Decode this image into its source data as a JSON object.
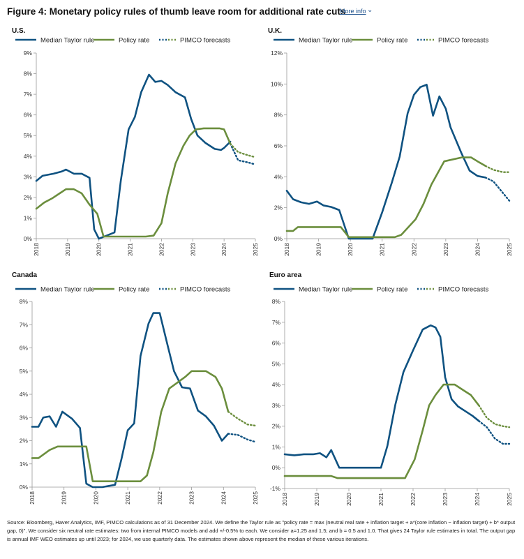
{
  "figure": {
    "title": "Figure 4: Monetary policy rules of thumb leave room for additional rate cuts",
    "more_info_label": "More info",
    "more_info_icon": "chevron-down-icon",
    "source_note": "Source: Bloomberg, Haver Analytics, IMF, PIMCO calculations as of 31 December 2024. We define the Taylor rule as \"policy rate = max (neutral real rate + inflation target + a*(core inflation − inflation target) + b* output gap, 0)\". We consider six neutral rate estimates: two from internal PIMCO models and add +/-0.5% to each. We consider a=1.25 and 1.5; and b = 0.5 and 1.0. That gives 24 Taylor rule estimates in total. The output gap is annual IMF WEO estimates up until 2023; for 2024, we use quarterly data. The estimates shown above represent the median of these various iterations."
  },
  "colors": {
    "taylor": "#0f5281",
    "policy": "#6b8e3d",
    "axis": "#999999",
    "text": "#222222"
  },
  "legend": {
    "taylor": "Median Taylor rule",
    "policy": "Policy rate",
    "forecast": "PIMCO forecasts"
  },
  "chart_data": [
    {
      "type": "line",
      "title": "U.S.",
      "x_ticks": [
        "2018",
        "2019",
        "2020",
        "2021",
        "2022",
        "2023",
        "2024",
        "2025"
      ],
      "xlim": [
        2018,
        2025
      ],
      "ylim": [
        0,
        9
      ],
      "y_ticks": [
        "0%",
        "1%",
        "2%",
        "3%",
        "4%",
        "5%",
        "6%",
        "7%",
        "8%",
        "9%"
      ],
      "y_values": [
        0,
        1,
        2,
        3,
        4,
        5,
        6,
        7,
        8,
        9
      ],
      "legend_position": "top",
      "series": [
        {
          "name": "Median Taylor rule",
          "style": "solid",
          "color": "taylor",
          "x": [
            2018.0,
            2018.2,
            2018.55,
            2018.8,
            2018.95,
            2019.2,
            2019.45,
            2019.7,
            2019.85,
            2020.0,
            2020.25,
            2020.5,
            2020.7,
            2020.95,
            2021.15,
            2021.35,
            2021.6,
            2021.8,
            2022.0,
            2022.2,
            2022.45,
            2022.75,
            2022.95,
            2023.15,
            2023.4,
            2023.7,
            2023.9,
            2024.0,
            2024.2
          ],
          "y": [
            2.8,
            3.05,
            3.15,
            3.25,
            3.35,
            3.15,
            3.15,
            2.95,
            0.45,
            0.0,
            0.15,
            0.3,
            2.8,
            5.3,
            5.9,
            7.1,
            7.95,
            7.6,
            7.65,
            7.45,
            7.1,
            6.85,
            5.8,
            5.0,
            4.65,
            4.35,
            4.3,
            4.4,
            4.7
          ]
        },
        {
          "name": "Policy rate",
          "style": "solid",
          "color": "policy",
          "x": [
            2018.0,
            2018.25,
            2018.5,
            2018.75,
            2018.95,
            2019.2,
            2019.45,
            2019.7,
            2019.95,
            2020.15,
            2020.5,
            2021.0,
            2021.2,
            2021.5,
            2021.75,
            2022.0,
            2022.2,
            2022.45,
            2022.7,
            2022.9,
            2023.1,
            2023.35,
            2023.6,
            2023.85,
            2024.0,
            2024.2
          ],
          "y": [
            1.45,
            1.75,
            1.95,
            2.2,
            2.4,
            2.4,
            2.2,
            1.65,
            1.2,
            0.1,
            0.1,
            0.1,
            0.1,
            0.1,
            0.15,
            0.75,
            2.2,
            3.65,
            4.5,
            5.0,
            5.3,
            5.35,
            5.35,
            5.35,
            5.3,
            4.6
          ]
        },
        {
          "name": "PIMCO forecasts",
          "style": "dotted",
          "color": "taylor",
          "x": [
            2024.2,
            2024.45,
            2024.75,
            2025.0
          ],
          "y": [
            4.6,
            3.8,
            3.7,
            3.6
          ]
        },
        {
          "name": "PIMCO forecasts",
          "style": "dotted",
          "color": "policy",
          "x": [
            2024.2,
            2024.45,
            2024.75,
            2025.0
          ],
          "y": [
            4.6,
            4.2,
            4.05,
            3.95
          ]
        }
      ]
    },
    {
      "type": "line",
      "title": "U.K.",
      "x_ticks": [
        "2018",
        "2019",
        "2020",
        "2021",
        "2022",
        "2023",
        "2024",
        "2025"
      ],
      "xlim": [
        2018,
        2025
      ],
      "ylim": [
        0,
        12
      ],
      "y_ticks": [
        "0%",
        "2%",
        "4%",
        "6%",
        "8%",
        "10%",
        "12%"
      ],
      "y_values": [
        0,
        2,
        4,
        6,
        8,
        10,
        12
      ],
      "legend_position": "top",
      "series": [
        {
          "name": "Median Taylor rule",
          "style": "solid",
          "color": "taylor",
          "x": [
            2018.0,
            2018.2,
            2018.45,
            2018.7,
            2018.95,
            2019.15,
            2019.4,
            2019.65,
            2019.95,
            2020.2,
            2020.7,
            2021.0,
            2021.3,
            2021.55,
            2021.8,
            2022.0,
            2022.2,
            2022.4,
            2022.6,
            2022.8,
            2023.0,
            2023.15,
            2023.5,
            2023.75,
            2024.0,
            2024.25
          ],
          "y": [
            3.1,
            2.55,
            2.35,
            2.25,
            2.4,
            2.15,
            2.05,
            1.85,
            0.0,
            0.0,
            0.0,
            1.7,
            3.6,
            5.3,
            8.1,
            9.3,
            9.8,
            9.95,
            7.95,
            9.2,
            8.4,
            7.2,
            5.5,
            4.4,
            4.05,
            3.95
          ]
        },
        {
          "name": "Policy rate",
          "style": "solid",
          "color": "policy",
          "x": [
            2018.0,
            2018.2,
            2018.35,
            2018.8,
            2019.0,
            2019.7,
            2019.95,
            2020.2,
            2020.7,
            2021.0,
            2021.4,
            2021.6,
            2021.85,
            2022.05,
            2022.3,
            2022.55,
            2022.75,
            2022.95,
            2023.5,
            2023.8,
            2024.0,
            2024.25
          ],
          "y": [
            0.5,
            0.5,
            0.75,
            0.75,
            0.75,
            0.75,
            0.1,
            0.1,
            0.1,
            0.1,
            0.1,
            0.25,
            0.8,
            1.25,
            2.25,
            3.5,
            4.25,
            5.0,
            5.25,
            5.25,
            5.0,
            4.7
          ]
        },
        {
          "name": "PIMCO forecasts",
          "style": "dotted",
          "color": "taylor",
          "x": [
            2024.25,
            2024.5,
            2024.8,
            2025.0
          ],
          "y": [
            3.95,
            3.7,
            2.95,
            2.45
          ]
        },
        {
          "name": "PIMCO forecasts",
          "style": "dotted",
          "color": "policy",
          "x": [
            2024.25,
            2024.5,
            2024.8,
            2025.0
          ],
          "y": [
            4.7,
            4.45,
            4.3,
            4.3
          ]
        }
      ]
    },
    {
      "type": "line",
      "title": "Canada",
      "x_ticks": [
        "2018",
        "2019",
        "2020",
        "2021",
        "2022",
        "2023",
        "2024",
        "2025"
      ],
      "xlim": [
        2018,
        2025
      ],
      "ylim": [
        0,
        8
      ],
      "y_ticks": [
        "0%",
        "1%",
        "2%",
        "3%",
        "4%",
        "5%",
        "6%",
        "7%",
        "8%"
      ],
      "y_values": [
        0,
        1,
        2,
        3,
        4,
        5,
        6,
        7,
        8
      ],
      "legend_position": "top",
      "series": [
        {
          "name": "Median Taylor rule",
          "style": "solid",
          "color": "taylor",
          "x": [
            2018.0,
            2018.2,
            2018.35,
            2018.55,
            2018.75,
            2018.95,
            2019.25,
            2019.5,
            2019.7,
            2019.9,
            2020.2,
            2020.6,
            2020.8,
            2021.0,
            2021.2,
            2021.4,
            2021.65,
            2021.8,
            2022.0,
            2022.25,
            2022.45,
            2022.7,
            2022.95,
            2023.2,
            2023.45,
            2023.7,
            2023.95,
            2024.15
          ],
          "y": [
            2.6,
            2.6,
            3.0,
            3.05,
            2.6,
            3.25,
            2.95,
            2.55,
            0.15,
            0.0,
            0.0,
            0.1,
            1.2,
            2.45,
            2.75,
            5.65,
            7.05,
            7.5,
            7.5,
            6.1,
            5.0,
            4.3,
            4.25,
            3.3,
            3.05,
            2.65,
            2.0,
            2.3
          ]
        },
        {
          "name": "Policy rate",
          "style": "solid",
          "color": "policy",
          "x": [
            2018.0,
            2018.2,
            2018.55,
            2018.8,
            2019.0,
            2019.7,
            2019.9,
            2020.2,
            2020.6,
            2021.0,
            2021.4,
            2021.6,
            2021.8,
            2022.05,
            2022.3,
            2022.55,
            2022.8,
            2023.0,
            2023.45,
            2023.75,
            2023.95,
            2024.15
          ],
          "y": [
            1.25,
            1.25,
            1.6,
            1.75,
            1.75,
            1.75,
            0.25,
            0.25,
            0.25,
            0.25,
            0.25,
            0.5,
            1.5,
            3.25,
            4.25,
            4.5,
            4.75,
            5.0,
            5.0,
            4.75,
            4.25,
            3.25
          ]
        },
        {
          "name": "PIMCO forecasts",
          "style": "dotted",
          "color": "taylor",
          "x": [
            2024.15,
            2024.45,
            2024.75,
            2025.0
          ],
          "y": [
            2.3,
            2.25,
            2.05,
            1.95
          ]
        },
        {
          "name": "PIMCO forecasts",
          "style": "dotted",
          "color": "policy",
          "x": [
            2024.15,
            2024.45,
            2024.75,
            2025.0
          ],
          "y": [
            3.25,
            2.95,
            2.7,
            2.65
          ]
        }
      ]
    },
    {
      "type": "line",
      "title": "Euro area",
      "x_ticks": [
        "2018",
        "2019",
        "2020",
        "2021",
        "2022",
        "2023",
        "2024",
        "2025"
      ],
      "xlim": [
        2018,
        2025
      ],
      "ylim": [
        -1,
        8
      ],
      "y_ticks": [
        "-1%",
        "0%",
        "1%",
        "2%",
        "3%",
        "4%",
        "5%",
        "6%",
        "7%",
        "8%"
      ],
      "y_values": [
        -1,
        0,
        1,
        2,
        3,
        4,
        5,
        6,
        7,
        8
      ],
      "legend_position": "top",
      "series": [
        {
          "name": "Median Taylor rule",
          "style": "solid",
          "color": "taylor",
          "x": [
            2018.0,
            2018.3,
            2018.6,
            2018.9,
            2019.1,
            2019.3,
            2019.45,
            2019.7,
            2019.9,
            2020.2,
            2020.6,
            2021.0,
            2021.2,
            2021.45,
            2021.7,
            2022.0,
            2022.3,
            2022.55,
            2022.7,
            2022.85,
            2023.0,
            2023.2,
            2023.4,
            2023.65,
            2023.85,
            2024.05
          ],
          "y": [
            0.65,
            0.6,
            0.65,
            0.65,
            0.7,
            0.5,
            0.85,
            0.0,
            0.0,
            0.0,
            0.0,
            0.0,
            1.05,
            3.05,
            4.6,
            5.65,
            6.65,
            6.85,
            6.75,
            6.3,
            4.35,
            3.3,
            2.95,
            2.7,
            2.5,
            2.25
          ]
        },
        {
          "name": "Policy rate",
          "style": "solid",
          "color": "policy",
          "x": [
            2018.0,
            2019.45,
            2019.65,
            2020.0,
            2021.0,
            2021.4,
            2021.75,
            2022.05,
            2022.3,
            2022.5,
            2022.7,
            2022.95,
            2023.3,
            2023.55,
            2023.8,
            2024.05
          ],
          "y": [
            -0.4,
            -0.4,
            -0.5,
            -0.5,
            -0.5,
            -0.5,
            -0.5,
            0.4,
            1.8,
            3.0,
            3.5,
            4.0,
            4.0,
            3.75,
            3.5,
            3.0
          ]
        },
        {
          "name": "PIMCO forecasts",
          "style": "dotted",
          "color": "taylor",
          "x": [
            2024.05,
            2024.3,
            2024.55,
            2024.8,
            2025.0
          ],
          "y": [
            2.25,
            1.95,
            1.4,
            1.15,
            1.15
          ]
        },
        {
          "name": "PIMCO forecasts",
          "style": "dotted",
          "color": "policy",
          "x": [
            2024.05,
            2024.3,
            2024.55,
            2024.8,
            2025.0
          ],
          "y": [
            3.0,
            2.4,
            2.1,
            2.0,
            1.95
          ]
        }
      ]
    }
  ]
}
